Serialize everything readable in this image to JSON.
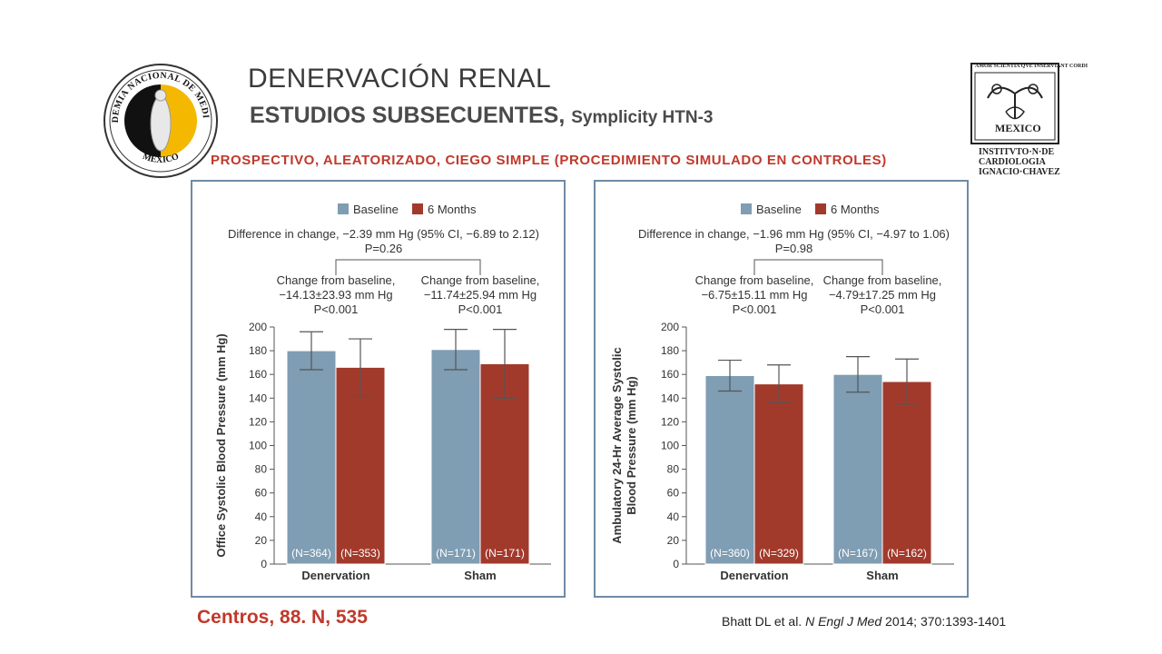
{
  "header": {
    "title": "DENERVACIÓN RENAL",
    "subtitle_bold": "ESTUDIOS SUBSECUENTES,",
    "subtitle_small": "Symplicity HTN-3",
    "design": "PROSPECTIVO, ALEATORIZADO, CIEGO SIMPLE (PROCEDIMIENTO SIMULADO EN CONTROLES)"
  },
  "logos": {
    "left": {
      "text_top": "ACADEMIA NACIONAL DE MEDICINA",
      "text_bottom": "MEXICO",
      "colors": [
        "#111111",
        "#f5b800"
      ]
    },
    "right": {
      "motto": "AMOR SCIENTIA QVE INSERVIANT CORDI",
      "lines": [
        "MEXICO",
        "INSTITVTO·N·DE",
        "CARDIOLOGIA",
        "IGNACIO·CHAVEZ"
      ]
    }
  },
  "footer": {
    "centros": "Centros, 88. N, 535",
    "citation_authors": "Bhatt DL et al. ",
    "citation_journal": "N Engl J Med",
    "citation_rest": " 2014; 370:1393-1401"
  },
  "colors": {
    "baseline": "#7f9db3",
    "six_months": "#a23a2c",
    "accent": "#c0392b",
    "panel_border": "#6e8ba5"
  },
  "chart_data": [
    {
      "type": "bar",
      "ylabel": "Office Systolic Blood Pressure (mm Hg)",
      "ylim": [
        0,
        200
      ],
      "yticks": [
        0,
        20,
        40,
        60,
        80,
        100,
        120,
        140,
        160,
        180,
        200
      ],
      "categories": [
        "Denervation",
        "Sham"
      ],
      "legend": [
        "Baseline",
        "6 Months"
      ],
      "series": [
        {
          "name": "Baseline",
          "values": [
            180,
            181
          ],
          "errors": [
            16,
            17
          ],
          "n_labels": [
            "(N=364)",
            "(N=171)"
          ]
        },
        {
          "name": "6 Months",
          "values": [
            166,
            169
          ],
          "errors": [
            24,
            29
          ],
          "n_labels": [
            "(N=353)",
            "(N=171)"
          ]
        }
      ],
      "difference": {
        "line1": "Difference in change, −2.39  mm Hg (95% CI, −6.89 to 2.12)",
        "line2": "P=0.26"
      },
      "annotations": [
        [
          "Change from baseline,",
          "−14.13±23.93 mm Hg",
          "P<0.001"
        ],
        [
          "Change from baseline,",
          "−11.74±25.94 mm Hg",
          "P<0.001"
        ]
      ]
    },
    {
      "type": "bar",
      "ylabel": "Ambulatory 24-Hr Average Systolic Blood Pressure (mm Hg)",
      "ylim": [
        0,
        200
      ],
      "yticks": [
        0,
        20,
        40,
        60,
        80,
        100,
        120,
        140,
        160,
        180,
        200
      ],
      "categories": [
        "Denervation",
        "Sham"
      ],
      "legend": [
        "Baseline",
        "6 Months"
      ],
      "series": [
        {
          "name": "Baseline",
          "values": [
            159,
            160
          ],
          "errors": [
            13,
            15
          ],
          "n_labels": [
            "(N=360)",
            "(N=167)"
          ]
        },
        {
          "name": "6 Months",
          "values": [
            152,
            154
          ],
          "errors": [
            16,
            19
          ],
          "n_labels": [
            "(N=329)",
            "(N=162)"
          ]
        }
      ],
      "difference": {
        "line1": "Difference in change, −1.96 mm Hg (95% CI, −4.97 to 1.06)",
        "line2": "P=0.98"
      },
      "annotations": [
        [
          "Change from baseline,",
          "−6.75±15.11 mm Hg",
          "P<0.001"
        ],
        [
          "Change from baseline,",
          "−4.79±17.25 mm Hg",
          "P<0.001"
        ]
      ]
    }
  ]
}
